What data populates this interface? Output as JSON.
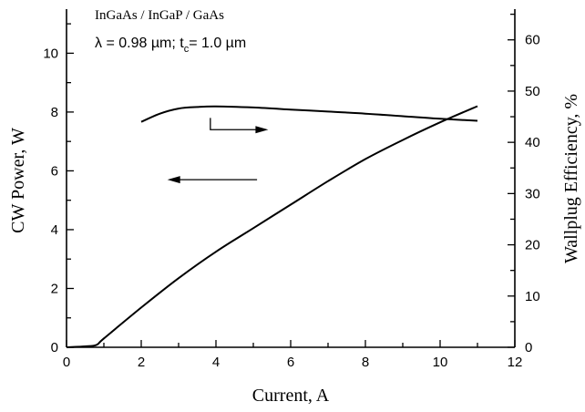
{
  "chart_data": {
    "type": "line",
    "title": "",
    "annotations": {
      "material": "InGaAs / InGaP / GaAs",
      "conditions_prefix": "λ = 0.98 µm; t",
      "conditions_sub": "c",
      "conditions_suffix": "= 1.0 µm"
    },
    "xlabel": "Current, A",
    "ylabel_left": "CW Power, W",
    "ylabel_right": "Wallplug Efficiency,  %",
    "xlim": [
      0,
      12
    ],
    "ylim_left": [
      0,
      11.5
    ],
    "ylim_right": [
      0,
      66
    ],
    "x_ticks": [
      "0",
      "2",
      "4",
      "6",
      "8",
      "10",
      "12"
    ],
    "y_ticks_left": [
      "0",
      "2",
      "4",
      "6",
      "8",
      "10"
    ],
    "y_ticks_right": [
      "0",
      "10",
      "20",
      "30",
      "40",
      "50",
      "60"
    ],
    "grid": false,
    "series": [
      {
        "axis": "left",
        "x": [
          0,
          0.5,
          0.8,
          1.0,
          2,
          3,
          4,
          5,
          6,
          7,
          8,
          9,
          10,
          11
        ],
        "y": [
          0,
          0.03,
          0.08,
          0.3,
          1.35,
          2.35,
          3.25,
          4.05,
          4.85,
          5.65,
          6.4,
          7.05,
          7.65,
          8.2
        ]
      },
      {
        "axis": "right",
        "x": [
          2,
          2.5,
          3,
          3.5,
          4,
          5,
          6,
          7,
          8,
          9,
          10,
          11
        ],
        "y": [
          44,
          45.6,
          46.6,
          46.9,
          47.0,
          46.8,
          46.4,
          46.0,
          45.6,
          45.1,
          44.6,
          44.2
        ]
      }
    ],
    "arrows": [
      {
        "points_to": "left",
        "x_from": 5.1,
        "x_to": 2.7,
        "y_left": 5.7
      },
      {
        "points_to": "right",
        "x_from": 3.85,
        "x_to": 5.4,
        "y_left": 7.4,
        "y_left_top": 7.8
      }
    ]
  }
}
